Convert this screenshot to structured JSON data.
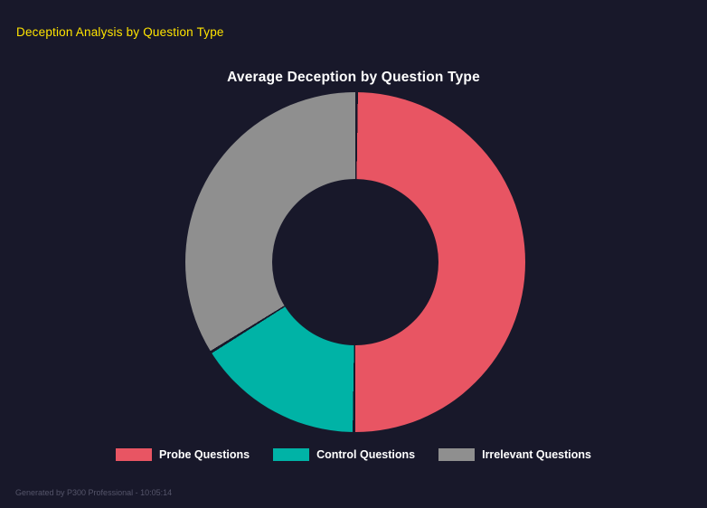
{
  "page": {
    "heading": "Deception Analysis by Question Type",
    "footer": "Generated by P300 Professional - 10:05:14"
  },
  "colors": {
    "background": "#18182a",
    "heading_text": "#ffe400",
    "title_text": "#ffffff",
    "footer_text": "#55556a"
  },
  "chart_data": {
    "type": "pie",
    "variant": "donut",
    "title": "Average Deception by Question Type",
    "categories": [
      "Probe Questions",
      "Control Questions",
      "Irrelevant Questions"
    ],
    "values": [
      50,
      16,
      34
    ],
    "colors": [
      "#e85563",
      "#00b3a6",
      "#8f8f8f"
    ],
    "start_angle_deg": 0,
    "direction": "clockwise",
    "inner_radius_ratio": 0.49,
    "legend_position": "bottom",
    "segment_border_color": "#18182a"
  }
}
